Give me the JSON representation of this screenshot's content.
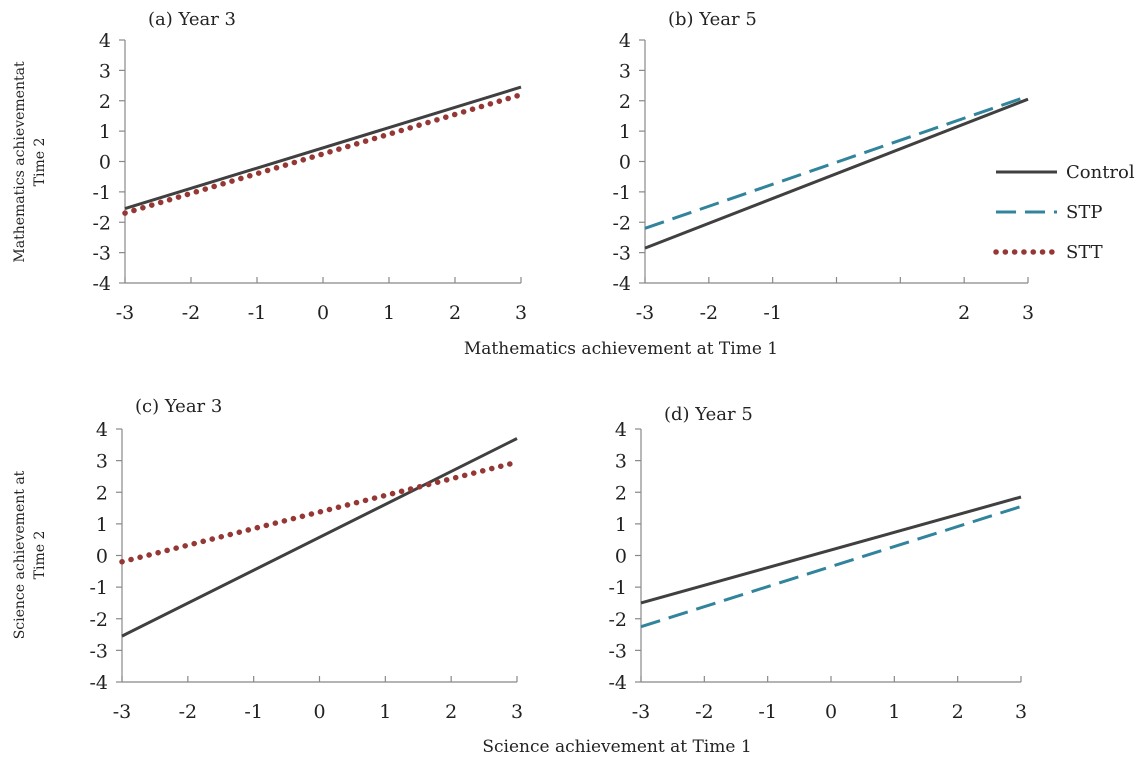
{
  "colors": {
    "Control": "#404040",
    "STP": "#31849b",
    "STT": "#953735"
  },
  "legend": {
    "placement": "right",
    "entries": [
      "Control",
      "STP",
      "STT"
    ]
  },
  "shared_labels": {
    "math_xlabel": "Mathematics achievement at Time 1",
    "science_xlabel": "Science achievement at Time 1",
    "math_ylabel": [
      "Mathematics achievementat",
      "Time 2"
    ],
    "science_ylabel": [
      "Science achievement at",
      "Time 2"
    ]
  },
  "chart_data": [
    {
      "type": "line",
      "title": "(a)  Year 3",
      "xlim": [
        -3,
        3
      ],
      "ylim": [
        -4,
        4
      ],
      "x_ticks": [
        "-3",
        "-2",
        "-1",
        "0",
        "1",
        "2",
        "3"
      ],
      "y_ticks": [
        "4",
        "3",
        "2",
        "1",
        "0",
        "-1",
        "-2",
        "-3",
        "-4"
      ],
      "series": [
        {
          "name": "Control",
          "style": "solid",
          "x": [
            -3,
            3
          ],
          "y": [
            -1.55,
            2.45
          ]
        },
        {
          "name": "STT",
          "style": "dotted",
          "x": [
            -3,
            3
          ],
          "y": [
            -1.7,
            2.2
          ]
        }
      ]
    },
    {
      "type": "line",
      "title": "(b)  Year 5",
      "xlim": [
        -3,
        3
      ],
      "ylim": [
        -4,
        4
      ],
      "x_ticks": [
        "-3",
        "-2",
        "-1",
        "",
        "",
        "2",
        "3"
      ],
      "y_ticks": [
        "4",
        "3",
        "2",
        "1",
        "0",
        "-1",
        "-2",
        "-3",
        "-4"
      ],
      "series": [
        {
          "name": "Control",
          "style": "solid",
          "x": [
            -3,
            3
          ],
          "y": [
            -2.85,
            2.05
          ]
        },
        {
          "name": "STP",
          "style": "dashed",
          "x": [
            -3,
            3
          ],
          "y": [
            -2.2,
            2.15
          ]
        }
      ]
    },
    {
      "type": "line",
      "title": "(c)  Year 3",
      "xlim": [
        -3,
        3
      ],
      "ylim": [
        -4,
        4
      ],
      "x_ticks": [
        "-3",
        "-2",
        "-1",
        "0",
        "1",
        "2",
        "3"
      ],
      "y_ticks": [
        "4",
        "3",
        "2",
        "1",
        "0",
        "-1",
        "-2",
        "-3",
        "-4"
      ],
      "series": [
        {
          "name": "Control",
          "style": "solid",
          "x": [
            -3,
            3
          ],
          "y": [
            -2.55,
            3.7
          ]
        },
        {
          "name": "STT",
          "style": "dotted",
          "x": [
            -3,
            3
          ],
          "y": [
            -0.2,
            2.95
          ]
        }
      ]
    },
    {
      "type": "line",
      "title": "(d)  Year 5",
      "xlim": [
        -3,
        3
      ],
      "ylim": [
        -4,
        4
      ],
      "x_ticks": [
        "-3",
        "-2",
        "-1",
        "0",
        "1",
        "2",
        "3"
      ],
      "y_ticks": [
        "4",
        "3",
        "2",
        "1",
        "0",
        "-1",
        "-2",
        "-3",
        "-4"
      ],
      "series": [
        {
          "name": "Control",
          "style": "solid",
          "x": [
            -3,
            3
          ],
          "y": [
            -1.5,
            1.85
          ]
        },
        {
          "name": "STP",
          "style": "dashed",
          "x": [
            -3,
            3
          ],
          "y": [
            -2.25,
            1.55
          ]
        }
      ]
    }
  ]
}
